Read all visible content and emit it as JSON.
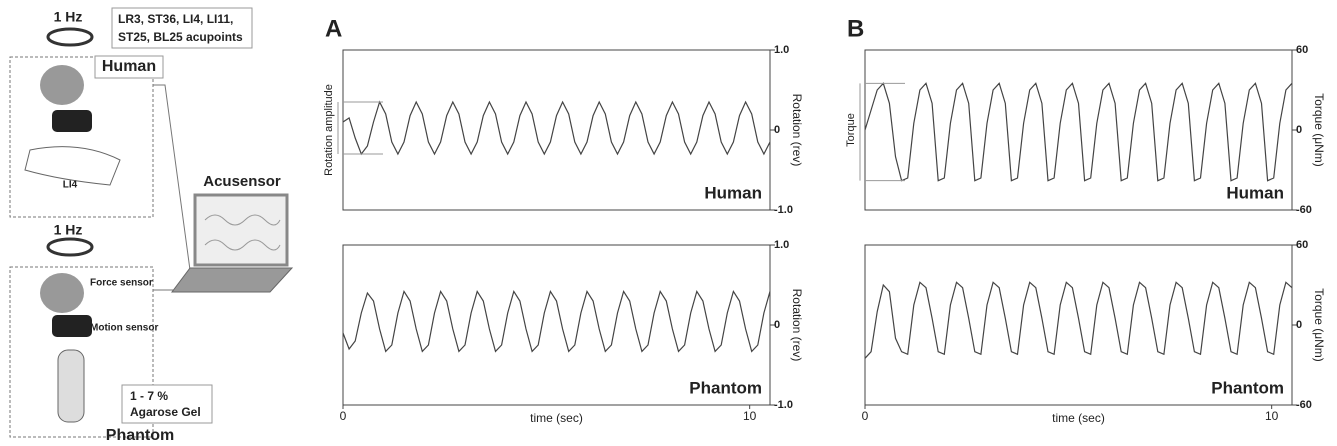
{
  "diagram": {
    "human_freq": "1 Hz",
    "acupoints_line1": "LR3, ST36, LI4, LI11,",
    "acupoints_line2": "ST25, BL25 acupoints",
    "human": "Human",
    "li4": "LI4",
    "acusensor": "Acusensor",
    "phantom_freq": "1 Hz",
    "force_sensor": "Force sensor",
    "motion_sensor": "Motion sensor",
    "gel_line1": "1 - 7 %",
    "gel_line2": "Agarose Gel",
    "phantom": "Phantom"
  },
  "chart_data": [
    {
      "type": "line",
      "panel": "A",
      "y_label": "Rotation (rev)",
      "label": "Human",
      "annotation": "Rotation amplitude",
      "color": "#444444",
      "xlim": [
        0,
        10.5
      ],
      "ylim": [
        -1,
        1
      ],
      "yticks": [
        {
          "value": -1,
          "label": "-1.0"
        },
        0,
        {
          "value": 1,
          "label": "1.0"
        }
      ],
      "x": [
        0,
        0.15,
        0.3,
        0.45,
        0.6,
        0.75,
        0.9,
        1.05,
        1.2,
        1.35,
        1.5,
        1.65,
        1.8,
        1.95,
        2.1,
        2.25,
        2.4,
        2.55,
        2.7,
        2.85,
        3,
        3.15,
        3.3,
        3.45,
        3.6,
        3.75,
        3.9,
        4.05,
        4.2,
        4.35,
        4.5,
        4.65,
        4.8,
        4.95,
        5.1,
        5.25,
        5.4,
        5.55,
        5.7,
        5.85,
        6,
        6.15,
        6.3,
        6.45,
        6.6,
        6.75,
        6.9,
        7.05,
        7.2,
        7.35,
        7.5,
        7.65,
        7.8,
        7.95,
        8.1,
        8.25,
        8.4,
        8.55,
        8.7,
        8.85,
        9,
        9.15,
        9.3,
        9.45,
        9.6,
        9.75,
        9.9,
        10.05,
        10.2,
        10.35,
        10.5
      ],
      "values": [
        0.1,
        0.15,
        -0.1,
        -0.3,
        -0.2,
        0.1,
        0.35,
        0.2,
        -0.15,
        -0.3,
        -0.15,
        0.18,
        0.35,
        0.2,
        -0.15,
        -0.3,
        -0.15,
        0.18,
        0.35,
        0.2,
        -0.15,
        -0.3,
        -0.15,
        0.18,
        0.35,
        0.2,
        -0.15,
        -0.3,
        -0.15,
        0.18,
        0.35,
        0.2,
        -0.15,
        -0.3,
        -0.15,
        0.18,
        0.35,
        0.2,
        -0.15,
        -0.3,
        -0.15,
        0.18,
        0.35,
        0.2,
        -0.15,
        -0.3,
        -0.15,
        0.18,
        0.35,
        0.2,
        -0.15,
        -0.3,
        -0.15,
        0.18,
        0.35,
        0.2,
        -0.15,
        -0.3,
        -0.15,
        0.18,
        0.35,
        0.2,
        -0.15,
        -0.3,
        -0.15,
        0.18,
        0.35,
        0.2,
        -0.15,
        -0.3,
        -0.15
      ]
    },
    {
      "type": "line",
      "label": "Phantom",
      "y_label": "Rotation (rev)",
      "x_label": "time (sec)",
      "color": "#444444",
      "xlim": [
        0,
        10.5
      ],
      "ylim": [
        -1,
        1
      ],
      "yticks": [
        {
          "value": -1,
          "label": "-1.0"
        },
        0,
        {
          "value": 1,
          "label": "1.0"
        }
      ],
      "xticks": [
        0,
        10
      ],
      "x": [
        0,
        0.15,
        0.3,
        0.45,
        0.6,
        0.75,
        0.9,
        1.05,
        1.2,
        1.35,
        1.5,
        1.65,
        1.8,
        1.95,
        2.1,
        2.25,
        2.4,
        2.55,
        2.7,
        2.85,
        3,
        3.15,
        3.3,
        3.45,
        3.6,
        3.75,
        3.9,
        4.05,
        4.2,
        4.35,
        4.5,
        4.65,
        4.8,
        4.95,
        5.1,
        5.25,
        5.4,
        5.55,
        5.7,
        5.85,
        6,
        6.15,
        6.3,
        6.45,
        6.6,
        6.75,
        6.9,
        7.05,
        7.2,
        7.35,
        7.5,
        7.65,
        7.8,
        7.95,
        8.1,
        8.25,
        8.4,
        8.55,
        8.7,
        8.85,
        9,
        9.15,
        9.3,
        9.45,
        9.6,
        9.75,
        9.9,
        10.05,
        10.2,
        10.35,
        10.5
      ],
      "values": [
        -0.1,
        -0.3,
        -0.2,
        0.15,
        0.4,
        0.3,
        -0.05,
        -0.33,
        -0.25,
        0.15,
        0.42,
        0.3,
        -0.05,
        -0.33,
        -0.25,
        0.15,
        0.42,
        0.3,
        -0.05,
        -0.33,
        -0.25,
        0.15,
        0.42,
        0.3,
        -0.05,
        -0.33,
        -0.25,
        0.15,
        0.42,
        0.3,
        -0.05,
        -0.33,
        -0.25,
        0.15,
        0.42,
        0.3,
        -0.05,
        -0.33,
        -0.25,
        0.15,
        0.42,
        0.3,
        -0.05,
        -0.33,
        -0.25,
        0.15,
        0.42,
        0.3,
        -0.05,
        -0.33,
        -0.25,
        0.15,
        0.42,
        0.3,
        -0.05,
        -0.33,
        -0.25,
        0.15,
        0.42,
        0.3,
        -0.05,
        -0.33,
        -0.25,
        0.15,
        0.42,
        0.3,
        -0.05,
        -0.33,
        -0.25,
        0.15,
        0.42
      ]
    },
    {
      "type": "line",
      "panel": "B",
      "y_label": "Torque (μNm)",
      "label": "Human",
      "annotation": "Torque",
      "color": "#444444",
      "xlim": [
        0,
        10.5
      ],
      "ylim": [
        -60,
        60
      ],
      "yticks": [
        -60,
        0,
        60
      ],
      "x": [
        0,
        0.15,
        0.3,
        0.45,
        0.6,
        0.75,
        0.9,
        1.05,
        1.2,
        1.35,
        1.5,
        1.65,
        1.8,
        1.95,
        2.1,
        2.25,
        2.4,
        2.55,
        2.7,
        2.85,
        3,
        3.15,
        3.3,
        3.45,
        3.6,
        3.75,
        3.9,
        4.05,
        4.2,
        4.35,
        4.5,
        4.65,
        4.8,
        4.95,
        5.1,
        5.25,
        5.4,
        5.55,
        5.7,
        5.85,
        6,
        6.15,
        6.3,
        6.45,
        6.6,
        6.75,
        6.9,
        7.05,
        7.2,
        7.35,
        7.5,
        7.65,
        7.8,
        7.95,
        8.1,
        8.25,
        8.4,
        8.55,
        8.7,
        8.85,
        9,
        9.15,
        9.3,
        9.45,
        9.6,
        9.75,
        9.9,
        10.05,
        10.2,
        10.35,
        10.5
      ],
      "values": [
        0,
        15,
        30,
        35,
        20,
        -20,
        -38,
        -36,
        5,
        30,
        35,
        20,
        -38,
        -36,
        5,
        30,
        35,
        20,
        -38,
        -36,
        5,
        30,
        35,
        20,
        -38,
        -36,
        5,
        30,
        35,
        20,
        -38,
        -36,
        5,
        30,
        35,
        20,
        -38,
        -36,
        5,
        30,
        35,
        20,
        -38,
        -36,
        5,
        30,
        35,
        20,
        -38,
        -36,
        5,
        30,
        35,
        20,
        -38,
        -36,
        5,
        30,
        35,
        20,
        -38,
        -36,
        5,
        30,
        35,
        20,
        -38,
        -36,
        5,
        30,
        35
      ]
    },
    {
      "type": "line",
      "label": "Phantom",
      "y_label": "Torque (μNm)",
      "x_label": "time (sec)",
      "color": "#444444",
      "xlim": [
        0,
        10.5
      ],
      "ylim": [
        -60,
        60
      ],
      "yticks": [
        -60,
        0,
        60
      ],
      "xticks": [
        0,
        10
      ],
      "x": [
        0,
        0.15,
        0.3,
        0.45,
        0.6,
        0.75,
        0.9,
        1.05,
        1.2,
        1.35,
        1.5,
        1.65,
        1.8,
        1.95,
        2.1,
        2.25,
        2.4,
        2.55,
        2.7,
        2.85,
        3,
        3.15,
        3.3,
        3.45,
        3.6,
        3.75,
        3.9,
        4.05,
        4.2,
        4.35,
        4.5,
        4.65,
        4.8,
        4.95,
        5.1,
        5.25,
        5.4,
        5.55,
        5.7,
        5.85,
        6,
        6.15,
        6.3,
        6.45,
        6.6,
        6.75,
        6.9,
        7.05,
        7.2,
        7.35,
        7.5,
        7.65,
        7.8,
        7.95,
        8.1,
        8.25,
        8.4,
        8.55,
        8.7,
        8.85,
        9,
        9.15,
        9.3,
        9.45,
        9.6,
        9.75,
        9.9,
        10.05,
        10.2,
        10.35,
        10.5
      ],
      "values": [
        -25,
        -20,
        10,
        30,
        25,
        -10,
        -20,
        -22,
        15,
        32,
        28,
        5,
        -20,
        -22,
        15,
        32,
        28,
        5,
        -20,
        -22,
        15,
        32,
        28,
        5,
        -20,
        -22,
        15,
        32,
        28,
        5,
        -20,
        -22,
        15,
        32,
        28,
        5,
        -20,
        -22,
        15,
        32,
        28,
        5,
        -20,
        -22,
        15,
        32,
        28,
        5,
        -20,
        -22,
        15,
        32,
        28,
        5,
        -20,
        -22,
        15,
        32,
        28,
        5,
        -20,
        -22,
        15,
        32,
        28,
        5,
        -20,
        -22,
        15,
        32,
        28
      ]
    }
  ]
}
